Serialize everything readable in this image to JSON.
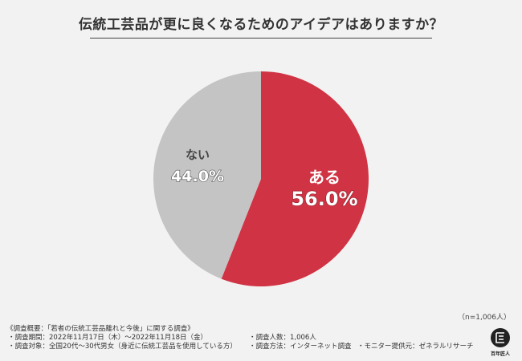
{
  "title": "伝統工芸品が更に良くなるためのアイデアはありますか？",
  "chart_data": {
    "type": "pie",
    "slices": [
      {
        "label": "ある",
        "value": 56.0,
        "value_label": "56.0%",
        "color": "#d03344"
      },
      {
        "label": "ない",
        "value": 44.0,
        "value_label": "44.0%",
        "color": "#c4c4c4"
      }
    ],
    "start": "12 o'clock",
    "direction": "clockwise"
  },
  "sample_note": "（n=1,006人）",
  "survey": {
    "heading": "《調査概要：「若者の伝統工芸品離れと今後」に関する調査》",
    "period": "・調査期間：2022年11月17日（木）〜2022年11月18日（金）",
    "count": "・調査人数：1,006人",
    "target": "・調査対象：全国20代〜30代男女（身近に伝統工芸品を使用している方）",
    "method": "・調査方法：インターネット調査",
    "provider": "・モニター提供元：ゼネラルリサーチ"
  },
  "logo_text": "百年匠人"
}
